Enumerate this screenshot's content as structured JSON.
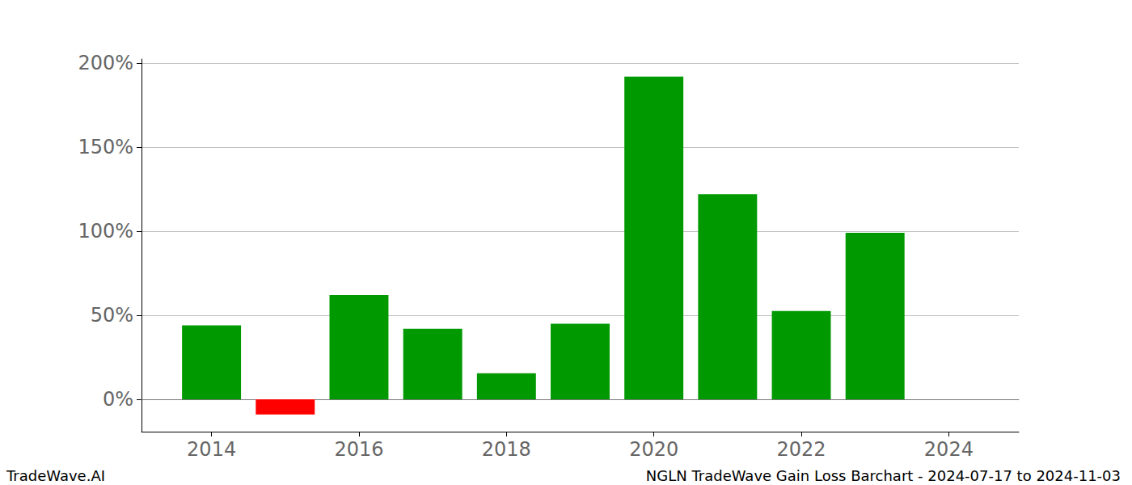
{
  "chart_data": {
    "type": "bar",
    "title": "NGLN TradeWave Gain Loss Barchart - 2024-07-17 to 2024-11-03",
    "annotations": [
      "TradeWave.AI"
    ],
    "x": [
      2014,
      2015,
      2016,
      2017,
      2018,
      2019,
      2020,
      2021,
      2022,
      2023
    ],
    "values": [
      44,
      -9,
      62,
      42,
      15.5,
      45,
      192,
      122,
      52.5,
      99
    ],
    "colors": [
      "#009900",
      "#ff0000",
      "#009900",
      "#009900",
      "#009900",
      "#009900",
      "#009900",
      "#009900",
      "#009900",
      "#009900"
    ],
    "xlim": [
      2013.05,
      2024.95
    ],
    "xticks": [
      2014,
      2016,
      2018,
      2020,
      2022,
      2024
    ],
    "ylim": [
      -19.2,
      202.4
    ],
    "yticks": [
      {
        "value": 0,
        "label": "0%"
      },
      {
        "value": 50,
        "label": "50%"
      },
      {
        "value": 100,
        "label": "100%"
      },
      {
        "value": 150,
        "label": "150%"
      },
      {
        "value": 200,
        "label": "200%"
      }
    ],
    "grid": true
  }
}
